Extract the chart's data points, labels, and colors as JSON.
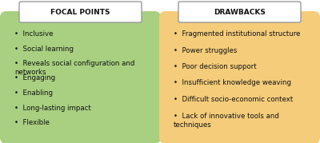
{
  "focal_points_title": "FOCAL POINTS",
  "drawbacks_title": "DRAWBACKS",
  "focal_points_items": [
    "Inclusive",
    "Social learning",
    "Reveals social configuration and\nnetworks",
    "Engaging",
    "Enabling",
    "Long-lasting impact",
    "Flexible"
  ],
  "drawbacks_items": [
    "Fragmented institutional structure",
    "Power struggles",
    "Poor decision support",
    "Insufficient knowledge weaving",
    "Difficult socio-economic context",
    "Lack of innovative tools and\ntechniques"
  ],
  "focal_box_color": "#a8d080",
  "drawbacks_box_color": "#f5cc7a",
  "header_box_color": "#ffffff",
  "header_border_color": "#999999",
  "text_color": "#111111",
  "bg_color": "#ffffff",
  "title_fontsize": 6.5,
  "item_fontsize": 6.2
}
